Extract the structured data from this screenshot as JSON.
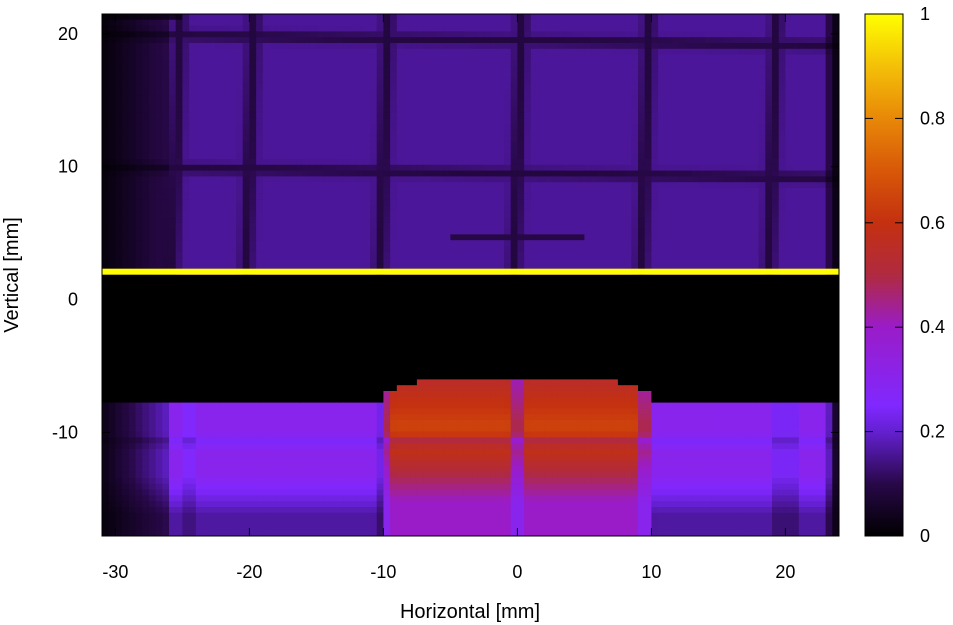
{
  "chart_data": {
    "type": "heatmap",
    "title": "",
    "xlabel": "Horizontal [mm]",
    "ylabel": "Vertical [mm]",
    "xlim": [
      -31,
      24
    ],
    "ylim": [
      -17.8,
      21.5
    ],
    "xticks": [
      -30,
      -20,
      -10,
      0,
      10,
      20
    ],
    "yticks": [
      -10,
      0,
      10,
      20
    ],
    "colorbar": {
      "range": [
        0,
        1
      ],
      "ticks": [
        0,
        0.2,
        0.4,
        0.6,
        0.8,
        1
      ],
      "colormap": [
        {
          "value": 0.0,
          "color": "#000000"
        },
        {
          "value": 0.1,
          "color": "#280848"
        },
        {
          "value": 0.2,
          "color": "#6420d0"
        },
        {
          "value": 0.25,
          "color": "#8028ff"
        },
        {
          "value": 0.4,
          "color": "#9a1cc8"
        },
        {
          "value": 0.5,
          "color": "#b02a40"
        },
        {
          "value": 0.6,
          "color": "#c43010"
        },
        {
          "value": 0.7,
          "color": "#d85808"
        },
        {
          "value": 0.8,
          "color": "#e88808"
        },
        {
          "value": 0.9,
          "color": "#f4c008"
        },
        {
          "value": 1.0,
          "color": "#ffff00"
        }
      ]
    },
    "features": {
      "background_level": 0.16,
      "grid_lines_x": [
        -25.5,
        -20,
        -10,
        0,
        9.5,
        19
      ],
      "grid_lines_y": [
        19.5,
        9.5
      ],
      "inner_box": {
        "x": [
          -5,
          5
        ],
        "y": [
          2.2,
          4.8
        ]
      },
      "saturated_line_y": 2.1,
      "dark_band_y": [
        -5.8,
        2
      ],
      "bright_region": {
        "x": [
          -10,
          10
        ],
        "y": [
          -17.8,
          -5.8
        ],
        "peak": 0.65
      },
      "wing_region": {
        "x": [
          -31,
          24
        ],
        "y": [
          -17.8,
          -7.7
        ],
        "level": 0.3
      }
    }
  }
}
